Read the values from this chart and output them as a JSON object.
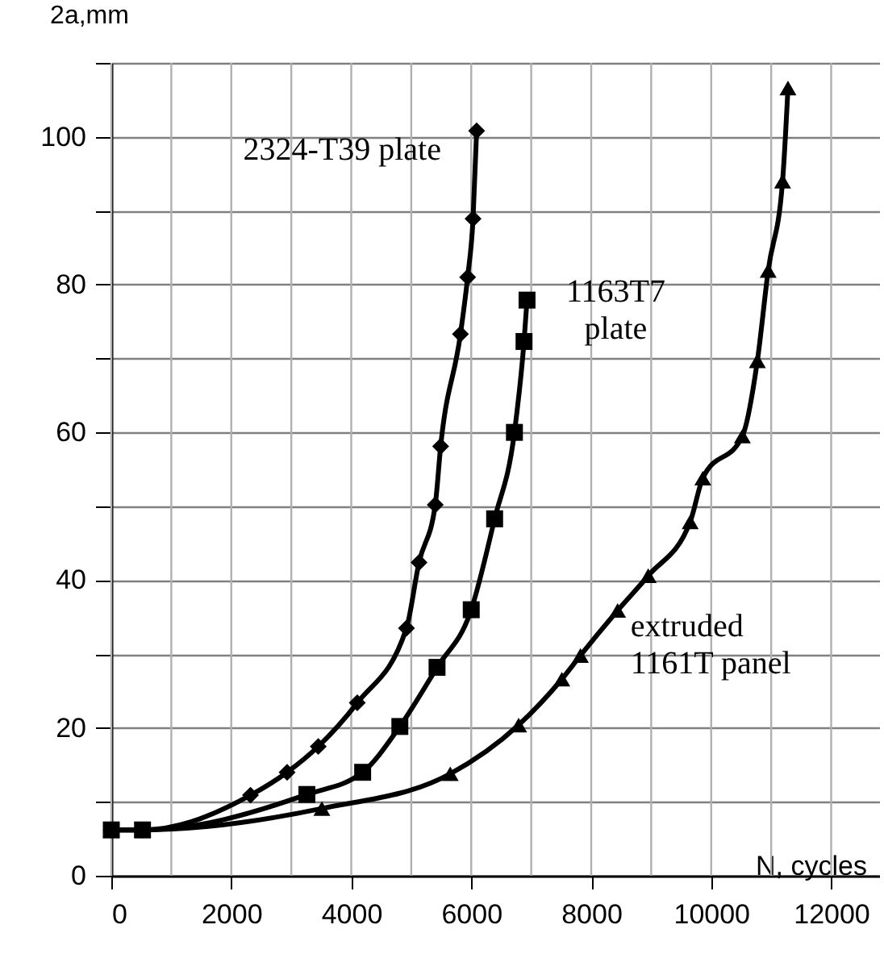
{
  "chart_data": {
    "type": "line",
    "xlabel": "N, cycles",
    "ylabel": "2a,mm",
    "xlim": [
      0,
      12800
    ],
    "ylim": [
      0,
      110
    ],
    "xticks": [
      0,
      {
        "value": 1000,
        "label": null
      },
      2000,
      {
        "value": 3000,
        "label": null
      },
      4000,
      {
        "value": 5000,
        "label": null
      },
      6000,
      {
        "value": 7000,
        "label": null
      },
      8000,
      {
        "value": 9000,
        "label": null
      },
      10000,
      {
        "value": 11000,
        "label": null
      },
      12000
    ],
    "yticks": [
      0,
      {
        "value": 10,
        "label": null
      },
      20,
      {
        "value": 30,
        "label": null
      },
      40,
      {
        "value": 50,
        "label": null
      },
      60,
      {
        "value": 70,
        "label": null
      },
      80,
      {
        "value": 90,
        "label": null
      },
      100,
      {
        "value": 110,
        "label": null
      }
    ],
    "grid": true,
    "line_style": "solid",
    "series": [
      {
        "name": "2324-T39 plate",
        "color": "#000000",
        "marker": "diamond",
        "x": [
          0,
          520,
          2320,
          2930,
          3450,
          4100,
          4920,
          5130,
          5400,
          5490,
          5820,
          5940,
          6030,
          6090
        ],
        "values": [
          6.2,
          6.2,
          10.9,
          14,
          17.5,
          23.4,
          33.5,
          42.4,
          50.2,
          58.1,
          73.3,
          81,
          88.9,
          100.8
        ]
      },
      {
        "name": "1163T7 plate",
        "color": "#000000",
        "marker": "square",
        "x": [
          0,
          520,
          3260,
          4190,
          4810,
          5430,
          6000,
          6390,
          6720,
          6880,
          6930
        ],
        "values": [
          6.2,
          6.2,
          11,
          14,
          20.2,
          28.2,
          36,
          48.3,
          60,
          72.3,
          77.9
        ]
      },
      {
        "name": "extruded 1161T panel",
        "color": "#000000",
        "marker": "triangle",
        "x": [
          0,
          520,
          3510,
          5650,
          6790,
          7510,
          7820,
          8440,
          8950,
          9650,
          9860,
          10520,
          10770,
          10950,
          11190,
          11280
        ],
        "values": [
          6.2,
          6.2,
          9.1,
          13.8,
          20.4,
          26.6,
          29.8,
          35.9,
          40.6,
          47.9,
          53.8,
          59.5,
          69.7,
          81.9,
          94,
          106.6
        ]
      }
    ]
  }
}
